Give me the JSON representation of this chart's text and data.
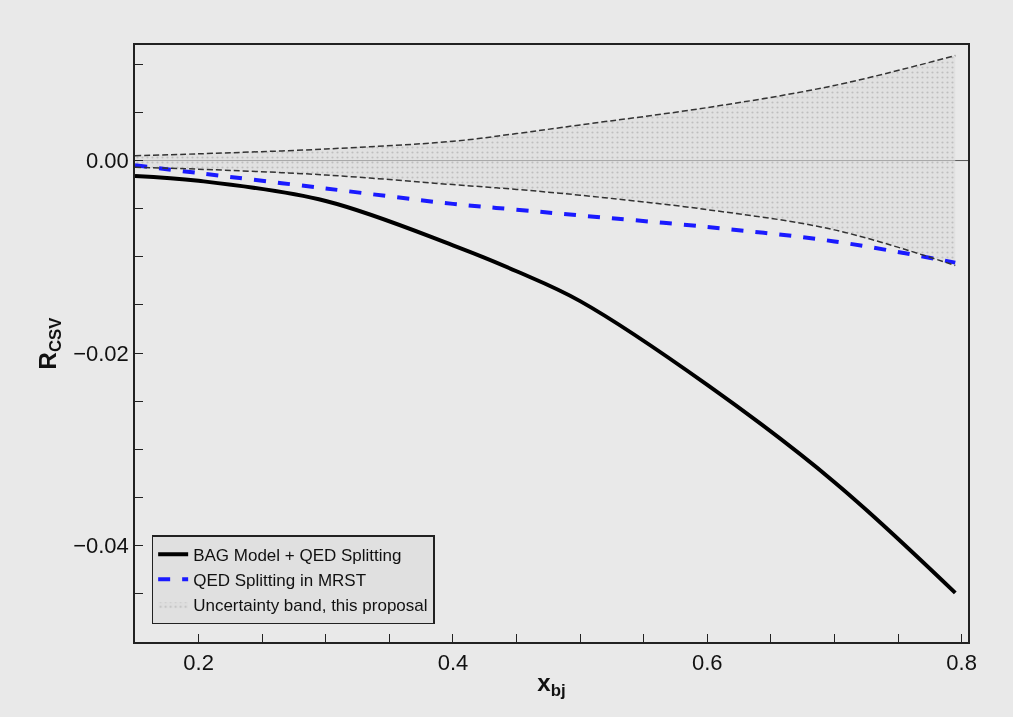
{
  "chart_data": {
    "type": "line",
    "xlabel": "x$_{bj}$",
    "ylabel": "R$_{CSV}$",
    "xlim": [
      0.15,
      0.805
    ],
    "ylim": [
      -0.05,
      0.012
    ],
    "xticks": [
      {
        "value": 0.2,
        "label": "0.2"
      },
      {
        "value": 0.25,
        "label": null
      },
      {
        "value": 0.3,
        "label": null
      },
      {
        "value": 0.35,
        "label": null
      },
      {
        "value": 0.4,
        "label": "0.4"
      },
      {
        "value": 0.45,
        "label": null
      },
      {
        "value": 0.5,
        "label": null
      },
      {
        "value": 0.55,
        "label": null
      },
      {
        "value": 0.6,
        "label": "0.6"
      },
      {
        "value": 0.65,
        "label": null
      },
      {
        "value": 0.7,
        "label": null
      },
      {
        "value": 0.75,
        "label": null
      },
      {
        "value": 0.8,
        "label": "0.8"
      }
    ],
    "yticks": [
      {
        "value": -0.045,
        "label": null
      },
      {
        "value": -0.04,
        "label": "−0.04"
      },
      {
        "value": -0.035,
        "label": null
      },
      {
        "value": -0.03,
        "label": null
      },
      {
        "value": -0.025,
        "label": null
      },
      {
        "value": -0.02,
        "label": "−0.02"
      },
      {
        "value": -0.015,
        "label": null
      },
      {
        "value": -0.01,
        "label": null
      },
      {
        "value": -0.005,
        "label": null
      },
      {
        "value": 0,
        "label": "0.00"
      },
      {
        "value": 0.005,
        "label": null
      },
      {
        "value": 0.01,
        "label": null
      }
    ],
    "x": [
      0.15,
      0.2,
      0.3,
      0.4,
      0.45,
      0.5,
      0.6,
      0.7,
      0.795
    ],
    "series": [
      {
        "name": "BAG Model + QED Splitting",
        "color": "#000000",
        "line_style": "solid",
        "values": [
          -0.0016,
          -0.0021,
          -0.0042,
          -0.0088,
          -0.0115,
          -0.0146,
          -0.0233,
          -0.0334,
          -0.0449
        ]
      },
      {
        "name": "QED Splitting in MRST",
        "color": "#1a1aff",
        "line_style": "dashed",
        "values": [
          -0.0005,
          -0.0013,
          -0.0029,
          -0.0045,
          -0.0051,
          -0.0057,
          -0.0069,
          -0.0084,
          -0.0106
        ]
      },
      {
        "color": "#333333",
        "line_style": "dashed",
        "values": [
          0.0005,
          0.0007,
          0.0012,
          0.002,
          0.0028,
          0.0037,
          0.0055,
          0.0078,
          0.0109
        ]
      },
      {
        "color": "#333333",
        "line_style": "dashed",
        "values": [
          -0.0007,
          -0.0009,
          -0.0015,
          -0.0025,
          -0.003,
          -0.0036,
          -0.0051,
          -0.0072,
          -0.0109
        ]
      },
      {
        "name": "Uncertainty band, this proposal",
        "type": "area",
        "color": "#333333",
        "values": [
          null,
          null,
          null,
          null,
          null,
          null,
          null,
          null,
          null
        ],
        "lower": [
          -0.0007,
          -0.0009,
          -0.0015,
          -0.0025,
          -0.003,
          -0.0036,
          -0.0051,
          -0.0072,
          -0.0109
        ],
        "upper": [
          0.0005,
          0.0007,
          0.0012,
          0.002,
          0.0028,
          0.0037,
          0.0055,
          0.0078,
          0.0109
        ]
      }
    ],
    "ref_lines": [
      {
        "axis": "y",
        "value": 0,
        "color": "#555555",
        "line_style": "solid"
      }
    ],
    "legend": "bottom left",
    "grid": false,
    "marker": "none"
  }
}
